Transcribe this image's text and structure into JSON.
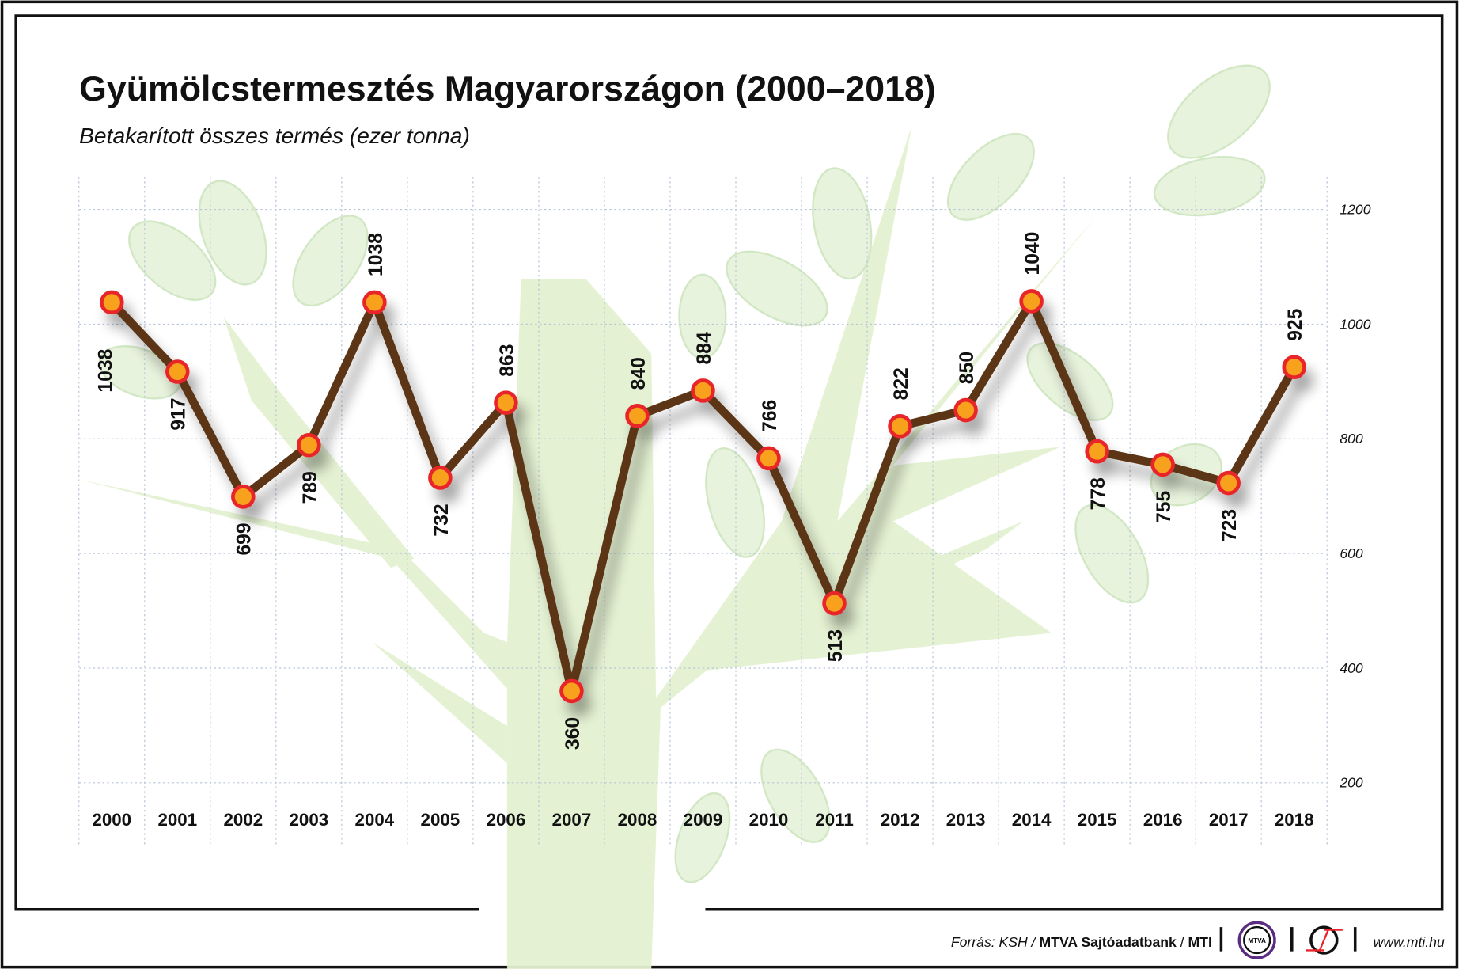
{
  "chart_data": {
    "type": "line",
    "title": "Gyümölcstermesztés Magyarországon (2000–2018)",
    "subtitle": "Betakarított összes termés (ezer tonna)",
    "xlabel": "",
    "ylabel": "",
    "categories": [
      "2000",
      "2001",
      "2002",
      "2003",
      "2004",
      "2005",
      "2006",
      "2007",
      "2008",
      "2009",
      "2010",
      "2011",
      "2012",
      "2013",
      "2014",
      "2015",
      "2016",
      "2017",
      "2018"
    ],
    "series": [
      {
        "name": "Betakarított összes termés",
        "values": [
          1038,
          917,
          699,
          789,
          1038,
          732,
          863,
          360,
          840,
          884,
          766,
          513,
          822,
          850,
          1040,
          778,
          755,
          723,
          925
        ]
      }
    ],
    "label_position": [
      "below",
      "below",
      "below",
      "below",
      "above",
      "below",
      "above",
      "below",
      "above",
      "above",
      "above",
      "below",
      "above",
      "above",
      "above",
      "below",
      "below",
      "below",
      "above"
    ],
    "yticks": [
      200,
      400,
      600,
      800,
      1000,
      1200
    ],
    "ylim": [
      200,
      1200
    ],
    "grid": true,
    "colors": {
      "line": "#5b3413",
      "marker_fill": "#f7a11a",
      "marker_stroke": "#e8252b",
      "tree": "#dcefc4"
    }
  },
  "footer": {
    "source_prefix": "Forrás: KSH / ",
    "source_bold": "MTVA Sajtóadatbank",
    "source_sep": " / ",
    "source_mti": "MTI",
    "logo_mtva": "MTVA",
    "url": "www.mti.hu"
  }
}
